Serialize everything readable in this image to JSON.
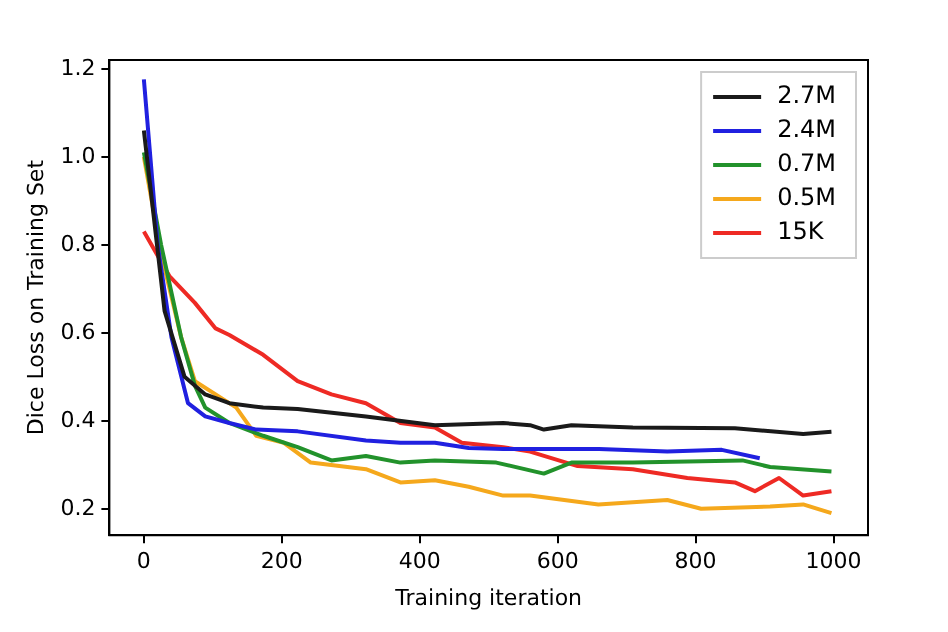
{
  "chart_data": {
    "type": "line",
    "xlabel": "Training iteration",
    "ylabel": "Dice Loss on Training Set",
    "xlim": [
      -50,
      1050
    ],
    "ylim": [
      0.14,
      1.22
    ],
    "xticks": [
      0,
      200,
      400,
      600,
      800,
      1000
    ],
    "yticks": [
      0.2,
      0.4,
      0.6,
      0.8,
      {
        "value": 1.0,
        "label": "1.0"
      },
      1.2
    ],
    "grid": false,
    "legend": "top right",
    "marker": "none",
    "line_style": "solid",
    "series": [
      {
        "name": "2.7M",
        "color": "#1a1a1a",
        "x": [
          0,
          30,
          59,
          89,
          124,
          173,
          223,
          322,
          422,
          521,
          560,
          580,
          620,
          709,
          857,
          956,
          997
        ],
        "values": [
          1.06,
          0.65,
          0.5,
          0.46,
          0.44,
          0.43,
          0.427,
          0.41,
          0.39,
          0.395,
          0.39,
          0.38,
          0.39,
          0.385,
          0.383,
          0.37,
          0.375
        ]
      },
      {
        "name": "2.4M",
        "color": "#2020e0",
        "x": [
          0,
          20,
          40,
          64,
          89,
          124,
          163,
          223,
          322,
          372,
          422,
          471,
          521,
          560,
          660,
          759,
          838,
          893
        ],
        "values": [
          1.176,
          0.8,
          0.59,
          0.44,
          0.41,
          0.395,
          0.38,
          0.376,
          0.355,
          0.35,
          0.35,
          0.338,
          0.336,
          0.336,
          0.336,
          0.33,
          0.334,
          0.315
        ]
      },
      {
        "name": "0.7M",
        "color": "#22922b",
        "x": [
          0,
          25,
          54,
          74,
          89,
          124,
          173,
          223,
          272,
          322,
          372,
          422,
          511,
          580,
          620,
          709,
          868,
          908,
          997
        ],
        "values": [
          1.01,
          0.8,
          0.59,
          0.48,
          0.43,
          0.395,
          0.366,
          0.34,
          0.31,
          0.32,
          0.305,
          0.31,
          0.305,
          0.28,
          0.305,
          0.305,
          0.31,
          0.295,
          0.285
        ]
      },
      {
        "name": "0.5M",
        "color": "#f5a81c",
        "x": [
          0,
          25,
          54,
          74,
          104,
          134,
          163,
          203,
          242,
          322,
          372,
          422,
          471,
          521,
          560,
          659,
          759,
          808,
          908,
          956,
          997
        ],
        "values": [
          1.0,
          0.78,
          0.59,
          0.49,
          0.46,
          0.43,
          0.366,
          0.35,
          0.305,
          0.29,
          0.26,
          0.265,
          0.25,
          0.23,
          0.23,
          0.21,
          0.22,
          0.2,
          0.205,
          0.21,
          0.19
        ]
      },
      {
        "name": "15K",
        "color": "#ee2a24",
        "x": [
          0,
          37,
          74,
          104,
          124,
          173,
          223,
          272,
          322,
          372,
          422,
          461,
          521,
          560,
          629,
          709,
          788,
          857,
          886,
          921,
          956,
          997
        ],
        "values": [
          0.83,
          0.729,
          0.668,
          0.61,
          0.595,
          0.55,
          0.49,
          0.46,
          0.44,
          0.395,
          0.385,
          0.35,
          0.34,
          0.33,
          0.297,
          0.29,
          0.27,
          0.26,
          0.24,
          0.27,
          0.23,
          0.24
        ]
      }
    ]
  }
}
